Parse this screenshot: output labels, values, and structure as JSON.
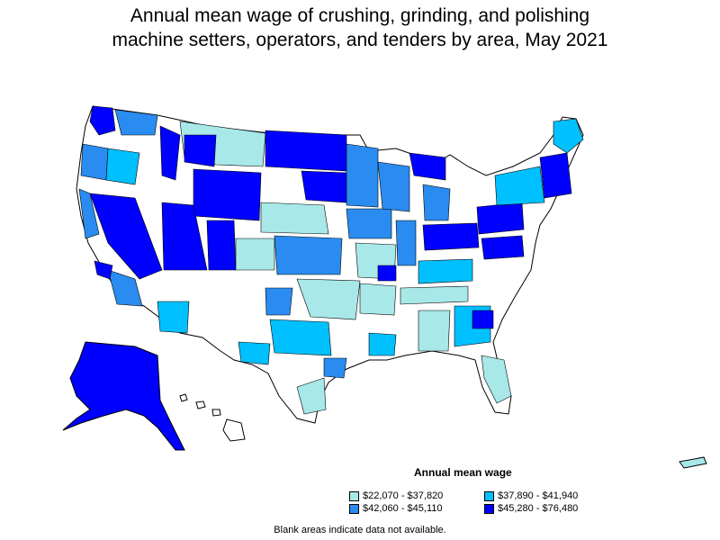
{
  "title_line1": "Annual mean wage of crushing, grinding, and polishing",
  "title_line2": "machine setters, operators, and tenders by area, May 2021",
  "legend": {
    "title": "Annual mean wage",
    "items": [
      {
        "label": "$22,070 - $37,820",
        "color": "#a8e8e8"
      },
      {
        "label": "$37,890 - $41,940",
        "color": "#00c0ff"
      },
      {
        "label": "$42,060 - $45,110",
        "color": "#2a8cf0"
      },
      {
        "label": "$45,280 - $76,480",
        "color": "#0000ff"
      }
    ]
  },
  "note": "Blank areas indicate data not available.",
  "colors": {
    "range1": "#a8e8e8",
    "range2": "#00c0ff",
    "range3": "#2a8cf0",
    "range4": "#0000ff",
    "blank": "#ffffff",
    "border": "#000000"
  }
}
